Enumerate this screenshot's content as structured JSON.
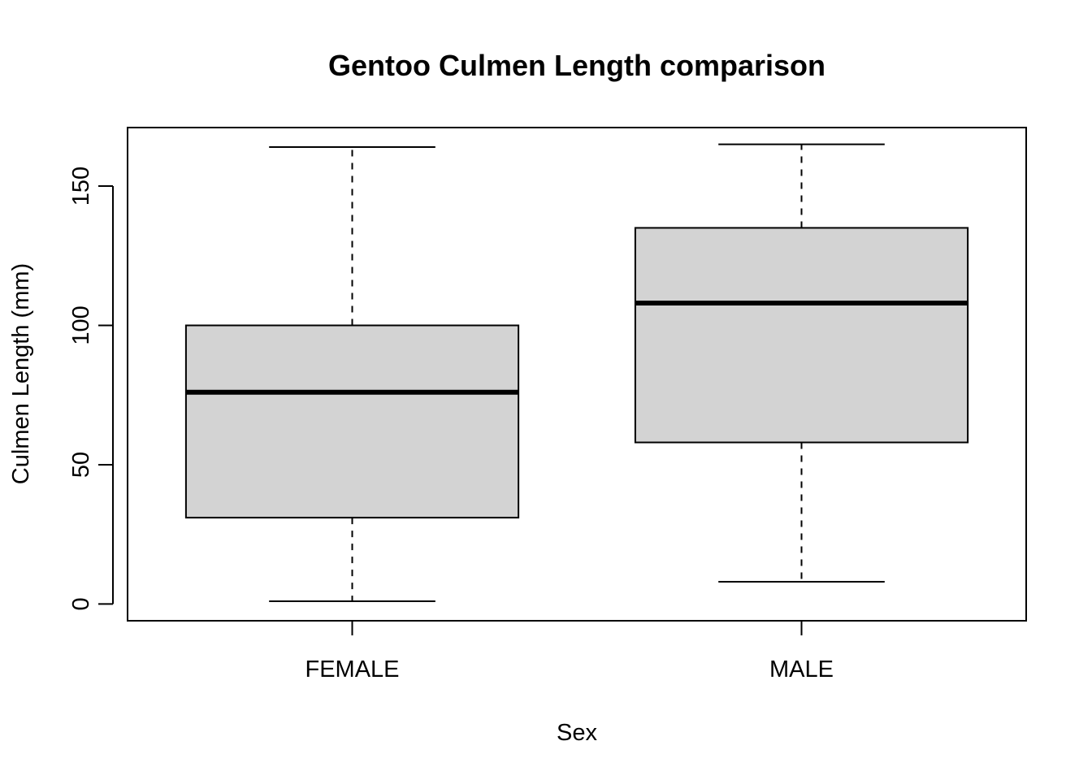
{
  "chart_data": {
    "type": "boxplot",
    "title": "Gentoo Culmen Length comparison",
    "xlabel": "Sex",
    "ylabel": "Culmen Length (mm)",
    "ylim": [
      -6,
      171
    ],
    "yticks": [
      0,
      50,
      100,
      150
    ],
    "grid": false,
    "legend": "none",
    "box_fill": "#d3d3d3",
    "categories": [
      "FEMALE",
      "MALE"
    ],
    "boxes": [
      {
        "category": "FEMALE",
        "whisker_low": 1,
        "q1": 31,
        "median": 76,
        "q3": 100,
        "whisker_high": 164
      },
      {
        "category": "MALE",
        "whisker_low": 8,
        "q1": 58,
        "median": 108,
        "q3": 135,
        "whisker_high": 165
      }
    ]
  }
}
